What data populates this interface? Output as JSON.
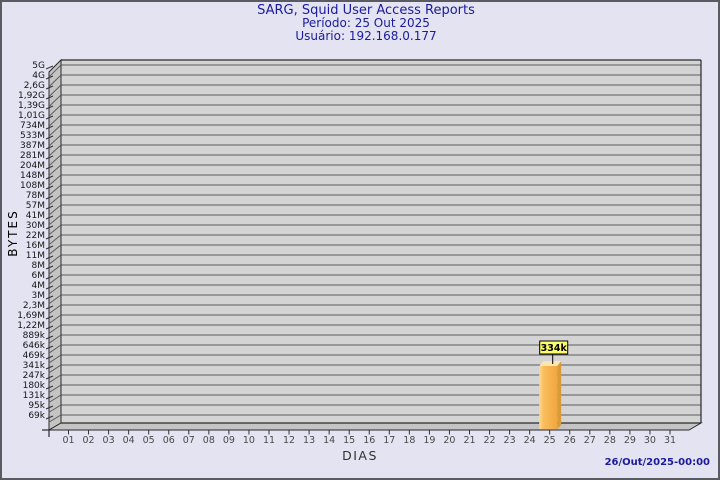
{
  "window": {
    "background": "#e3e3f2",
    "border_color": "#5a5a63"
  },
  "header": {
    "title": "SARG, Squid User Access Reports",
    "period_line": "Período: 25 Out 2025",
    "user_line": "Usuário: 192.168.0.177",
    "text_color": "#1b1b9b"
  },
  "footer": {
    "generated_at": "26/Out/2025-00:00"
  },
  "chart_data": {
    "type": "bar",
    "title": "SARG, Squid User Access Reports",
    "subtitle_period": "Período: 25 Out 2025",
    "subtitle_user": "Usuário: 192.168.0.177",
    "xlabel": "DIAS",
    "ylabel": "BYTES",
    "y_scale": "log",
    "grid": true,
    "y_min_gridline_value": 69000,
    "y_max_gridline_value": 5000000000,
    "yticks": [
      "5G",
      "4G",
      "2,6G",
      "1,92G",
      "1,39G",
      "1,01G",
      "734M",
      "533M",
      "387M",
      "281M",
      "204M",
      "148M",
      "108M",
      "78M",
      "57M",
      "41M",
      "30M",
      "22M",
      "16M",
      "11M",
      "8M",
      "6M",
      "4M",
      "3M",
      "2,3M",
      "1,69M",
      "1,22M",
      "889k",
      "646k",
      "469k",
      "341k",
      "247k",
      "180k",
      "131k",
      "95k",
      "69k"
    ],
    "categories": [
      "01",
      "02",
      "03",
      "04",
      "05",
      "06",
      "07",
      "08",
      "09",
      "10",
      "11",
      "12",
      "13",
      "14",
      "15",
      "16",
      "17",
      "18",
      "19",
      "20",
      "21",
      "22",
      "23",
      "24",
      "25",
      "26",
      "27",
      "28",
      "29",
      "30",
      "31"
    ],
    "values": [
      0,
      0,
      0,
      0,
      0,
      0,
      0,
      0,
      0,
      0,
      0,
      0,
      0,
      0,
      0,
      0,
      0,
      0,
      0,
      0,
      0,
      0,
      0,
      0,
      334000,
      0,
      0,
      0,
      0,
      0,
      0
    ],
    "data_labels": [
      "",
      "",
      "",
      "",
      "",
      "",
      "",
      "",
      "",
      "",
      "",
      "",
      "",
      "",
      "",
      "",
      "",
      "",
      "",
      "",
      "",
      "",
      "",
      "",
      "334k",
      "",
      "",
      "",
      "",
      "",
      ""
    ],
    "colors": {
      "plot_bg": "#d4d4d4",
      "wall": "#c4c4c4",
      "gridline": "#5d5d60",
      "edge": "#2a2a2a",
      "bar_front_light": "#ffd991",
      "bar_front": "#f9bd5c",
      "bar_front_dark": "#f0a640",
      "bar_side": "#d79b3c",
      "bar_top": "#fae6ae",
      "value_label_bg": "#fbfb6b",
      "y_text": "#151515",
      "x_text": "#4a4a4a"
    }
  }
}
